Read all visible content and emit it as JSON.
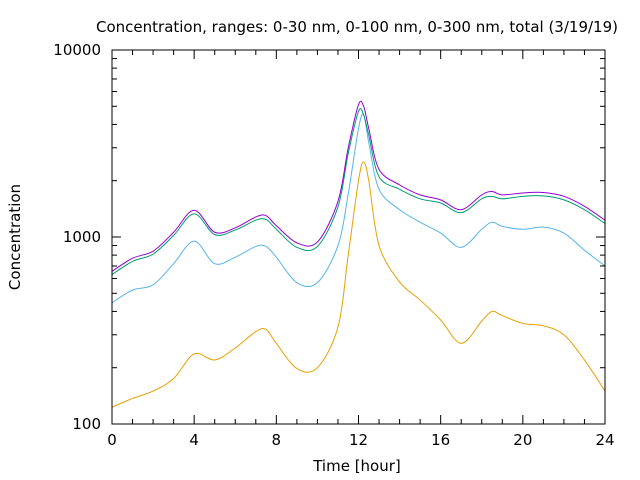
{
  "chart_data": {
    "type": "line",
    "title": "Concentration, ranges: 0-30 nm, 0-100 nm, 0-300 nm, total (3/19/19)",
    "xlabel": "Time [hour]",
    "ylabel": "Concentration",
    "xlim": [
      0,
      24
    ],
    "ylim": [
      100,
      10000
    ],
    "yscale": "log",
    "grid": false,
    "legend": "none",
    "x_ticks": [
      "0",
      "4",
      "8",
      "12",
      "16",
      "20",
      "24"
    ],
    "y_ticks": [
      "100",
      "1000",
      "10000"
    ],
    "x": [
      0,
      1,
      2,
      3,
      4,
      5,
      6,
      7,
      7.5,
      8,
      9,
      10,
      11,
      11.5,
      12,
      12.25,
      12.5,
      13,
      14,
      15,
      16,
      17,
      18,
      18.5,
      19,
      20,
      21,
      22,
      23,
      24
    ],
    "series": [
      {
        "color": "#e69f00",
        "values": [
          123,
          137,
          150,
          175,
          237,
          220,
          255,
          312,
          320,
          270,
          198,
          200,
          330,
          800,
          2000,
          2520,
          2000,
          900,
          575,
          460,
          360,
          270,
          355,
          400,
          380,
          345,
          335,
          300,
          220,
          150
        ]
      },
      {
        "color": "#56b4e9",
        "values": [
          445,
          520,
          555,
          720,
          950,
          720,
          780,
          890,
          890,
          780,
          570,
          570,
          900,
          1700,
          3800,
          4500,
          3200,
          1800,
          1400,
          1200,
          1050,
          880,
          1100,
          1200,
          1140,
          1100,
          1130,
          1050,
          850,
          700
        ]
      },
      {
        "color": "#009e73",
        "values": [
          630,
          740,
          810,
          1020,
          1330,
          1030,
          1090,
          1230,
          1240,
          1100,
          880,
          890,
          1450,
          2800,
          4700,
          4500,
          3500,
          2100,
          1800,
          1600,
          1520,
          1350,
          1600,
          1650,
          1600,
          1650,
          1660,
          1580,
          1400,
          1180
        ]
      },
      {
        "color": "#9400d3",
        "values": [
          655,
          770,
          840,
          1060,
          1390,
          1060,
          1120,
          1280,
          1300,
          1150,
          930,
          940,
          1550,
          3000,
          5100,
          5000,
          3800,
          2300,
          1900,
          1680,
          1580,
          1400,
          1680,
          1750,
          1680,
          1720,
          1730,
          1650,
          1460,
          1230
        ]
      }
    ]
  }
}
